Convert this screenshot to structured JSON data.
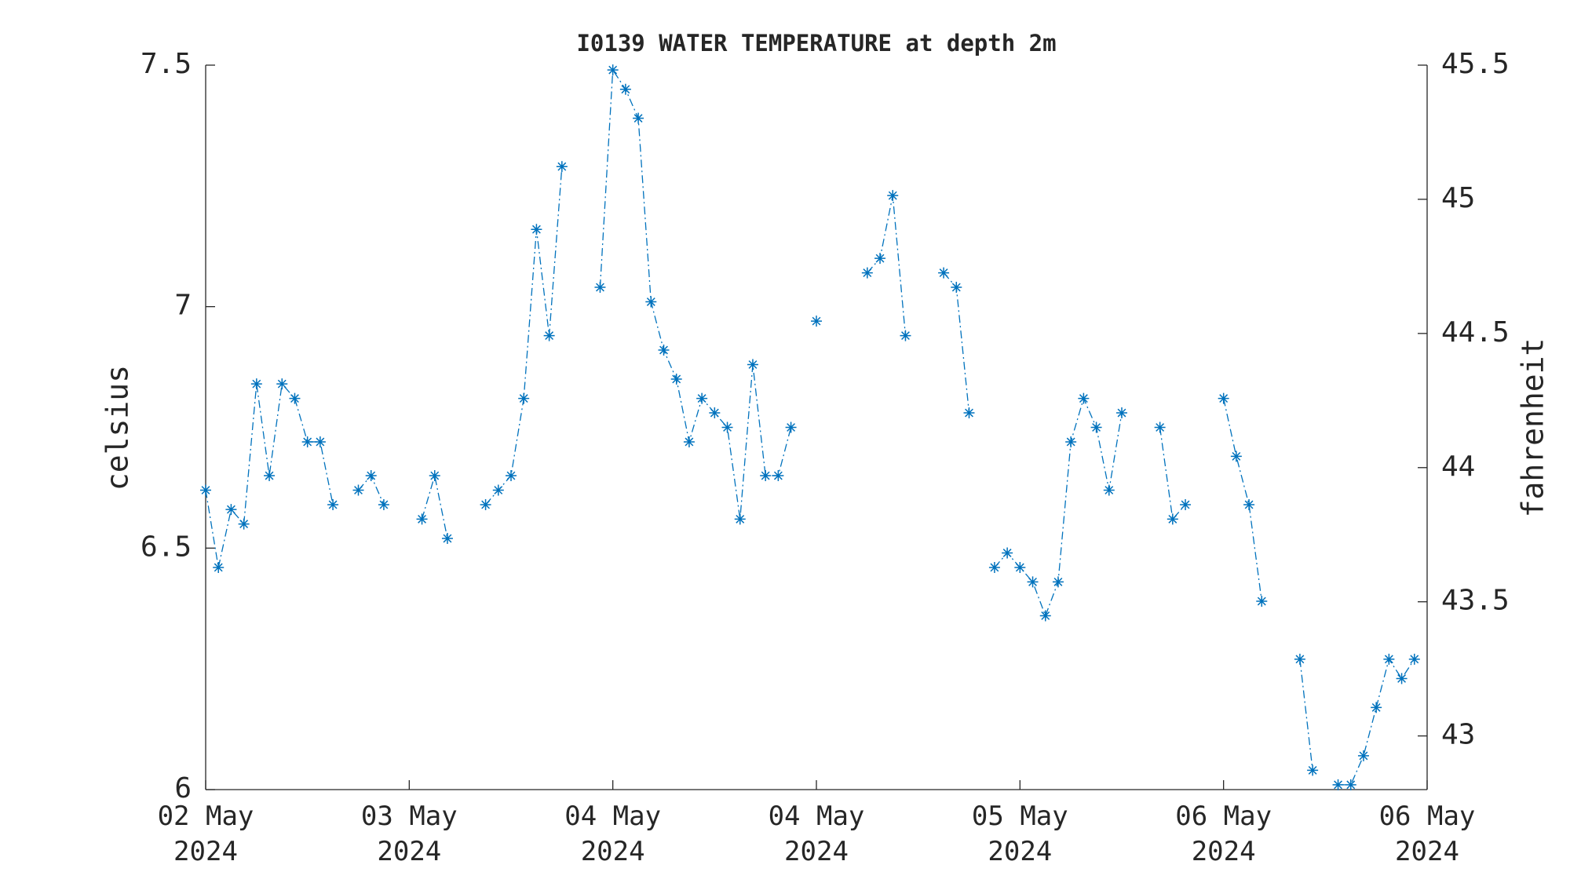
{
  "chart_data": {
    "type": "line",
    "title": "I0139 WATER TEMPERATURE at depth 2m",
    "ylabel": "celsius",
    "y2label": "fahrenheit",
    "x": [
      0,
      1,
      2,
      3,
      4,
      5,
      6,
      7,
      8,
      9,
      10,
      11,
      12,
      13,
      14,
      15,
      16,
      17,
      18,
      19,
      20,
      21,
      22,
      23,
      24,
      25,
      26,
      27,
      28,
      29,
      30,
      31,
      32,
      33,
      34,
      35,
      36,
      37,
      38,
      39,
      40,
      41,
      42,
      43,
      44,
      45,
      46,
      47,
      48,
      49,
      50,
      51,
      52,
      53,
      54,
      55,
      56,
      57,
      58,
      59,
      60,
      61,
      62,
      63,
      64,
      65,
      66,
      67,
      68,
      69,
      70,
      71,
      72,
      73,
      74,
      75,
      76,
      77,
      78,
      79,
      80,
      81,
      82,
      83,
      84,
      85,
      86,
      87,
      88,
      89,
      90,
      91,
      92,
      93,
      94,
      95
    ],
    "series": [
      {
        "color": "#0072bd",
        "values": [
          6.62,
          6.46,
          6.58,
          6.55,
          6.84,
          6.65,
          6.84,
          6.81,
          6.72,
          6.72,
          6.59,
          null,
          6.62,
          6.65,
          6.59,
          null,
          null,
          6.56,
          6.65,
          6.52,
          null,
          null,
          6.59,
          6.62,
          6.65,
          6.81,
          7.16,
          6.94,
          7.29,
          null,
          null,
          7.04,
          7.49,
          7.45,
          7.39,
          7.01,
          6.91,
          6.85,
          6.72,
          6.81,
          6.78,
          6.75,
          6.56,
          6.88,
          6.65,
          6.65,
          6.75,
          null,
          6.97,
          null,
          null,
          null,
          7.07,
          7.1,
          7.23,
          6.94,
          null,
          null,
          7.07,
          7.04,
          6.78,
          null,
          6.46,
          6.49,
          6.46,
          6.43,
          6.36,
          6.43,
          6.72,
          6.81,
          6.75,
          6.62,
          6.78,
          null,
          null,
          6.75,
          6.56,
          6.59,
          null,
          null,
          6.81,
          6.69,
          6.59,
          6.39,
          null,
          null,
          6.27,
          6.04,
          null,
          6.01,
          6.01,
          6.07,
          6.17,
          6.27,
          6.23,
          6.27
        ]
      }
    ],
    "xlim": [
      0,
      96
    ],
    "xticks": [
      {
        "value": 0,
        "label": "02 May\n2024"
      },
      {
        "value": 16,
        "label": "03 May\n2024"
      },
      {
        "value": 32,
        "label": "04 May\n2024"
      },
      {
        "value": 48,
        "label": "04 May\n2024"
      },
      {
        "value": 64,
        "label": "05 May\n2024"
      },
      {
        "value": 80,
        "label": "06 May\n2024"
      },
      {
        "value": 96,
        "label": "06 May\n2024"
      }
    ],
    "ylim": [
      6,
      7.5
    ],
    "yticks": [
      6,
      6.5,
      7,
      7.5
    ],
    "y2lim": [
      42.8,
      45.5
    ],
    "y2ticks": [
      43,
      43.5,
      44,
      44.5,
      45,
      45.5
    ],
    "grid": false
  }
}
